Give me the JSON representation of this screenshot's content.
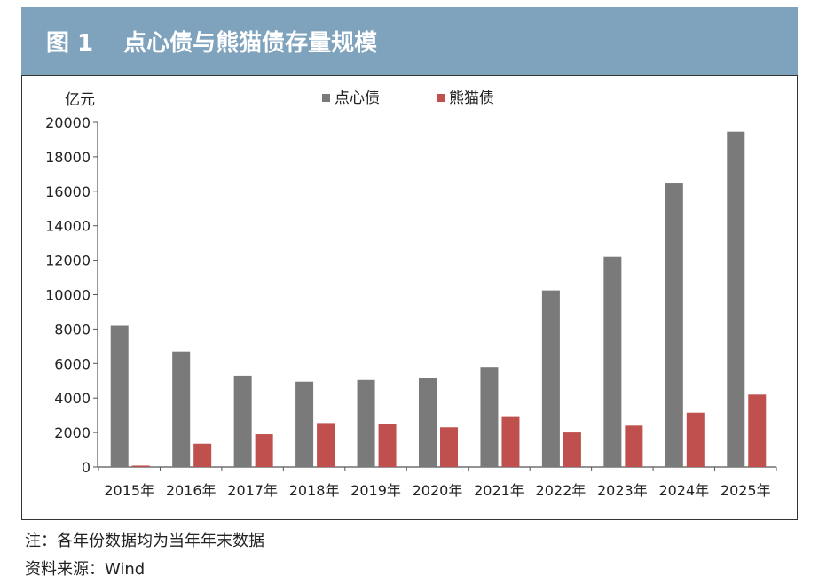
{
  "figure": {
    "number": "图 1",
    "title": "点心债与熊猫债存量规模"
  },
  "note": "注：各年份数据均为当年年末数据",
  "source": "资料来源：Wind",
  "colors": {
    "dim_sum": "#7a7a7a",
    "panda": "#c0504d",
    "title_bar": "#7fa3bd"
  },
  "chart_data": {
    "type": "bar",
    "unit_label": "亿元",
    "categories": [
      "2015年",
      "2016年",
      "2017年",
      "2018年",
      "2019年",
      "2020年",
      "2021年",
      "2022年",
      "2023年",
      "2024年",
      "2025年"
    ],
    "series": [
      {
        "name": "点心债",
        "color": "#7a7a7a",
        "values": [
          8200,
          6700,
          5300,
          4950,
          5050,
          5150,
          5800,
          10250,
          12200,
          16450,
          19450
        ]
      },
      {
        "name": "熊猫债",
        "color": "#c0504d",
        "values": [
          80,
          1350,
          1900,
          2550,
          2500,
          2300,
          2950,
          2000,
          2400,
          3150,
          4200
        ]
      }
    ],
    "ylim": [
      0,
      20000
    ],
    "yticks": [
      "0",
      "2000",
      "4000",
      "6000",
      "8000",
      "10000",
      "12000",
      "14000",
      "16000",
      "18000",
      "20000"
    ],
    "legend_position": "top",
    "grid": false
  }
}
